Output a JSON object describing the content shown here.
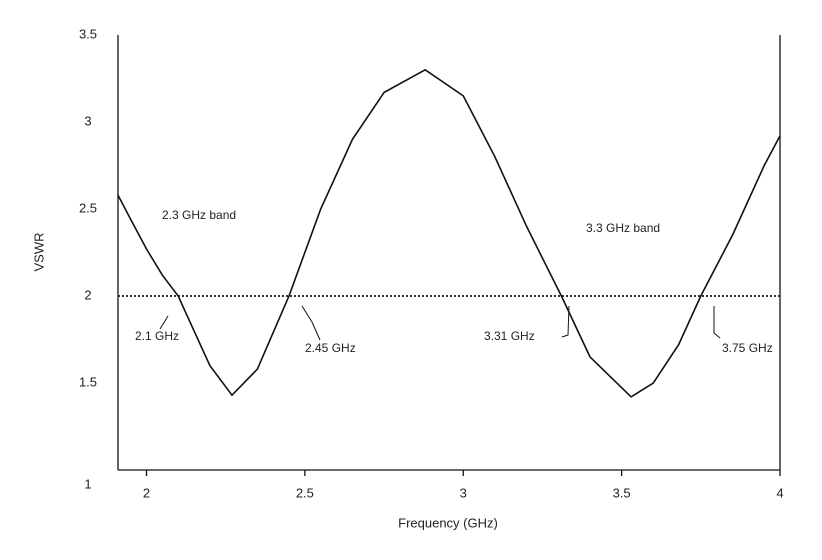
{
  "chart_data": {
    "type": "line",
    "x_label": "Frequency (GHz)",
    "y_label": "VSWR",
    "x": [
      1.91,
      1.95,
      2.0,
      2.05,
      2.1,
      2.15,
      2.2,
      2.27,
      2.35,
      2.45,
      2.55,
      2.65,
      2.75,
      2.88,
      3.0,
      3.1,
      3.2,
      3.31,
      3.4,
      3.53,
      3.6,
      3.68,
      3.75,
      3.85,
      3.95,
      4.0
    ],
    "series": [
      {
        "name": "VSWR",
        "color": "#111111",
        "values": [
          2.58,
          2.44,
          2.27,
          2.12,
          2.0,
          1.8,
          1.6,
          1.43,
          1.58,
          2.0,
          2.5,
          2.9,
          3.17,
          3.3,
          3.15,
          2.8,
          2.4,
          2.0,
          1.65,
          1.42,
          1.5,
          1.72,
          2.0,
          2.35,
          2.75,
          2.92
        ]
      }
    ],
    "reference_line": 2,
    "xlim": [
      1.91,
      4
    ],
    "ylim": [
      1,
      3.5
    ],
    "xticks": [
      2,
      2.5,
      3,
      3.5,
      4
    ],
    "yticks": [
      1,
      1.5,
      2,
      2.5,
      3,
      3.5
    ],
    "annotations": [
      "2.3 GHz band",
      "3.3 GHz band",
      "2.1 GHz",
      "2.45  GHz",
      "3.31 GHz",
      "3.75 GHz"
    ],
    "grid": false
  }
}
